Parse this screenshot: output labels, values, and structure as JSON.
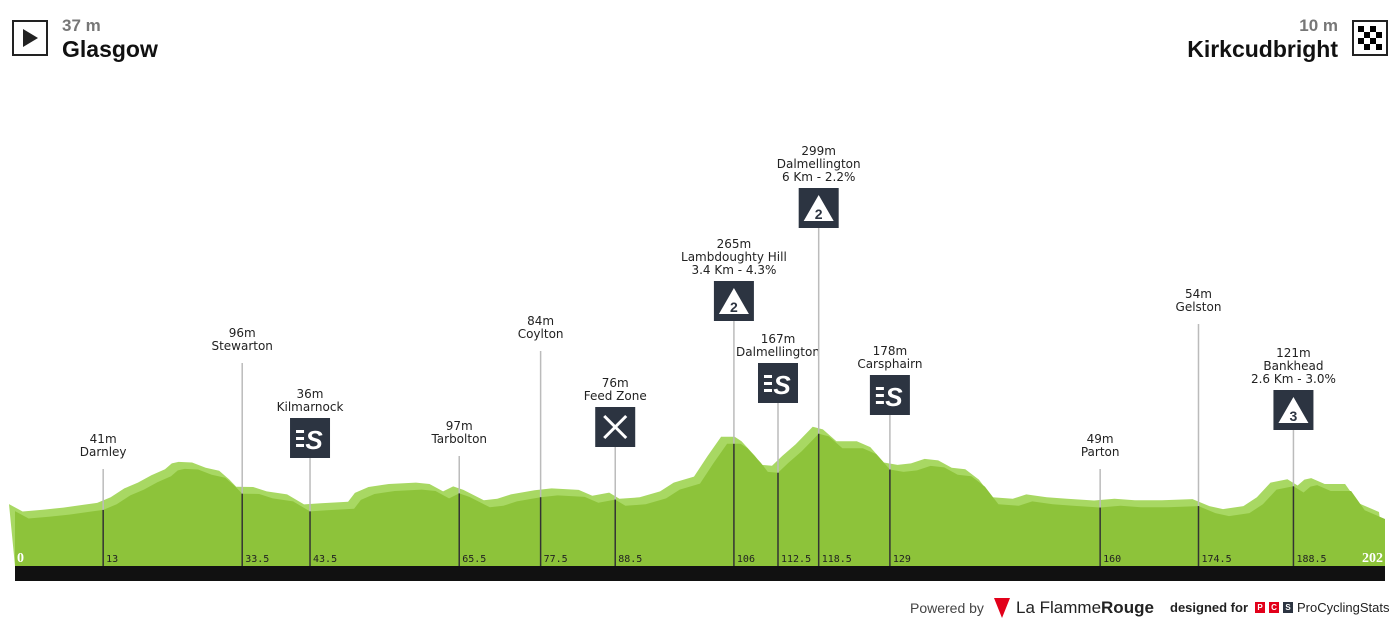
{
  "start": {
    "altitude": "37 m",
    "city": "Glasgow",
    "icon": "play-icon"
  },
  "finish": {
    "altitude": "10 m",
    "city": "Kirkcudbright",
    "icon": "checkered-flag-icon"
  },
  "colors": {
    "profile": "#8dc33a",
    "profile_light": "#a8d863",
    "base_bar": "#111111",
    "icon_bg": "#2c3441"
  },
  "chart_data": {
    "type": "area",
    "xlabel": "",
    "ylabel": "",
    "xlim": [
      0,
      202
    ],
    "x_start_label": "0",
    "x_end_label": "202",
    "profile": [
      [
        0,
        37
      ],
      [
        2,
        12
      ],
      [
        5,
        18
      ],
      [
        8,
        25
      ],
      [
        11,
        35
      ],
      [
        13,
        41
      ],
      [
        15,
        60
      ],
      [
        17,
        90
      ],
      [
        19,
        110
      ],
      [
        21,
        135
      ],
      [
        23,
        155
      ],
      [
        24,
        175
      ],
      [
        25,
        180
      ],
      [
        27,
        178
      ],
      [
        29,
        160
      ],
      [
        31,
        150
      ],
      [
        32.5,
        120
      ],
      [
        33.5,
        96
      ],
      [
        36,
        95
      ],
      [
        38,
        80
      ],
      [
        41,
        70
      ],
      [
        43.5,
        36
      ],
      [
        46,
        40
      ],
      [
        50,
        45
      ],
      [
        51,
        75
      ],
      [
        53,
        95
      ],
      [
        56,
        105
      ],
      [
        60,
        110
      ],
      [
        62,
        105
      ],
      [
        64,
        80
      ],
      [
        65.5,
        97
      ],
      [
        67,
        85
      ],
      [
        70,
        50
      ],
      [
        72,
        55
      ],
      [
        74,
        70
      ],
      [
        77.5,
        84
      ],
      [
        80,
        90
      ],
      [
        84,
        85
      ],
      [
        86,
        65
      ],
      [
        88.5,
        76
      ],
      [
        90,
        55
      ],
      [
        93,
        60
      ],
      [
        96,
        80
      ],
      [
        98,
        110
      ],
      [
        101,
        130
      ],
      [
        103,
        200
      ],
      [
        105,
        265
      ],
      [
        107,
        265
      ],
      [
        108,
        250
      ],
      [
        110,
        200
      ],
      [
        111,
        170
      ],
      [
        112.5,
        167
      ],
      [
        114,
        200
      ],
      [
        116,
        240
      ],
      [
        118.5,
        299
      ],
      [
        120,
        290
      ],
      [
        122,
        250
      ],
      [
        125,
        250
      ],
      [
        127,
        230
      ],
      [
        129,
        178
      ],
      [
        131,
        170
      ],
      [
        133,
        175
      ],
      [
        135,
        190
      ],
      [
        137,
        185
      ],
      [
        139,
        160
      ],
      [
        141,
        155
      ],
      [
        143,
        120
      ],
      [
        145,
        60
      ],
      [
        148,
        55
      ],
      [
        150,
        70
      ],
      [
        153,
        60
      ],
      [
        156,
        55
      ],
      [
        160,
        49
      ],
      [
        163,
        55
      ],
      [
        166,
        50
      ],
      [
        170,
        50
      ],
      [
        174.5,
        54
      ],
      [
        177,
        30
      ],
      [
        179,
        20
      ],
      [
        182,
        30
      ],
      [
        184,
        60
      ],
      [
        186,
        110
      ],
      [
        188.5,
        121
      ],
      [
        190,
        100
      ],
      [
        191,
        120
      ],
      [
        192,
        125
      ],
      [
        194,
        105
      ],
      [
        197,
        105
      ],
      [
        199,
        40
      ],
      [
        202,
        10
      ]
    ],
    "points": [
      {
        "km": "13",
        "alt": "41m",
        "name": "Darnley",
        "detail": "",
        "icon": ""
      },
      {
        "km": "33.5",
        "alt": "96m",
        "name": "Stewarton",
        "detail": "",
        "icon": ""
      },
      {
        "km": "43.5",
        "alt": "36m",
        "name": "Kilmarnock",
        "detail": "",
        "icon": "sprint-icon"
      },
      {
        "km": "65.5",
        "alt": "97m",
        "name": "Tarbolton",
        "detail": "",
        "icon": ""
      },
      {
        "km": "77.5",
        "alt": "84m",
        "name": "Coylton",
        "detail": "",
        "icon": ""
      },
      {
        "km": "88.5",
        "alt": "76m",
        "name": "Feed Zone",
        "detail": "",
        "icon": "feed-zone-icon"
      },
      {
        "km": "106",
        "alt": "265m",
        "name": "Lambdoughty Hill",
        "detail": "3.4 Km - 4.3%",
        "icon": "climb-cat-2-icon",
        "cat": "2"
      },
      {
        "km": "112.5",
        "alt": "167m",
        "name": "Dalmellington",
        "detail": "",
        "icon": "sprint-icon"
      },
      {
        "km": "118.5",
        "alt": "299m",
        "name": "Dalmellington",
        "detail": "6 Km - 2.2%",
        "icon": "climb-cat-2-icon",
        "cat": "2"
      },
      {
        "km": "129",
        "alt": "178m",
        "name": "Carsphairn",
        "detail": "",
        "icon": "sprint-icon"
      },
      {
        "km": "160",
        "alt": "49m",
        "name": "Parton",
        "detail": "",
        "icon": ""
      },
      {
        "km": "174.5",
        "alt": "54m",
        "name": "Gelston",
        "detail": "",
        "icon": ""
      },
      {
        "km": "188.5",
        "alt": "121m",
        "name": "Bankhead",
        "detail": "2.6 Km - 3.0%",
        "icon": "climb-cat-3-icon",
        "cat": "3"
      }
    ]
  },
  "footer": {
    "powered_by": "Powered by",
    "lfr_a": "La Flamme",
    "lfr_b": "Rouge",
    "lfr_badge": "1",
    "designed_for": "designed for",
    "pcs_letters": [
      "P",
      "C",
      "S"
    ],
    "pcs_name": "ProCyclingStats"
  }
}
